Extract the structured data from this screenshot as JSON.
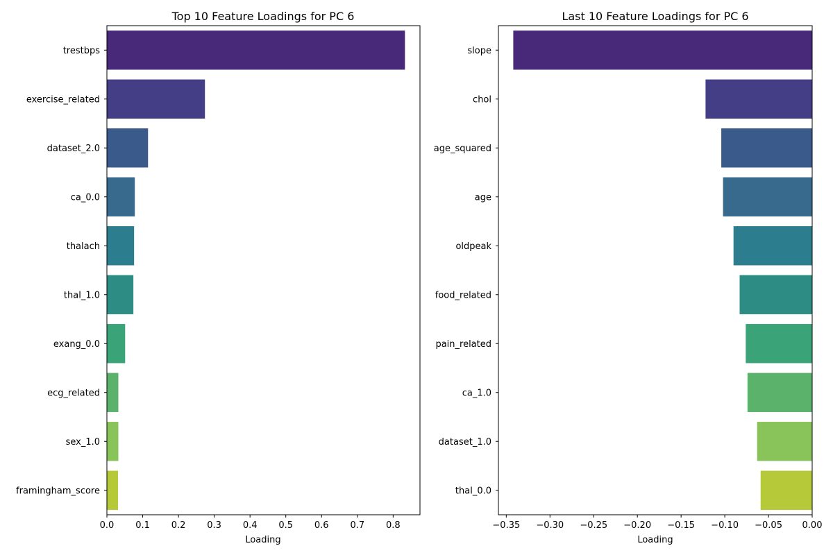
{
  "chart_data": [
    {
      "type": "bar",
      "orientation": "horizontal",
      "title": "Top 10 Feature Loadings for PC 6",
      "xlabel": "Loading",
      "ylabel": "",
      "xlim": [
        0,
        0.875
      ],
      "xticks": [
        0.0,
        0.1,
        0.2,
        0.3,
        0.4,
        0.5,
        0.6,
        0.7,
        0.8
      ],
      "xtick_labels": [
        "0.0",
        "0.1",
        "0.2",
        "0.3",
        "0.4",
        "0.5",
        "0.6",
        "0.7",
        "0.8"
      ],
      "grid": false,
      "categories": [
        "trestbps",
        "exercise_related",
        "dataset_2.0",
        "ca_0.0",
        "thalach",
        "thal_1.0",
        "exang_0.0",
        "ecg_related",
        "sex_1.0",
        "framingham_score"
      ],
      "values": [
        0.833,
        0.274,
        0.115,
        0.078,
        0.076,
        0.074,
        0.051,
        0.032,
        0.032,
        0.031
      ],
      "colors": [
        "#482979",
        "#433e85",
        "#3b5a8c",
        "#376a8c",
        "#2c7e8e",
        "#2d8c83",
        "#3aa377",
        "#5bb36b",
        "#88c45a",
        "#b5c939"
      ]
    },
    {
      "type": "bar",
      "orientation": "horizontal",
      "title": "Last 10 Feature Loadings for PC 6",
      "xlabel": "Loading",
      "ylabel": "",
      "xlim": [
        -0.359,
        0.0
      ],
      "xticks": [
        -0.35,
        -0.3,
        -0.25,
        -0.2,
        -0.15,
        -0.1,
        -0.05,
        0.0
      ],
      "xtick_labels": [
        "−0.35",
        "−0.30",
        "−0.25",
        "−0.20",
        "−0.15",
        "−0.10",
        "−0.05",
        "0.00"
      ],
      "grid": false,
      "categories": [
        "slope",
        "chol",
        "age_squared",
        "age",
        "oldpeak",
        "food_related",
        "pain_related",
        "ca_1.0",
        "dataset_1.0",
        "thal_0.0"
      ],
      "values": [
        -0.342,
        -0.122,
        -0.104,
        -0.102,
        -0.09,
        -0.083,
        -0.076,
        -0.074,
        -0.063,
        -0.059
      ],
      "colors": [
        "#482979",
        "#433e85",
        "#3b5a8c",
        "#376a8c",
        "#2c7e8e",
        "#2d8c83",
        "#3aa377",
        "#5bb36b",
        "#88c45a",
        "#b5c939"
      ]
    }
  ]
}
